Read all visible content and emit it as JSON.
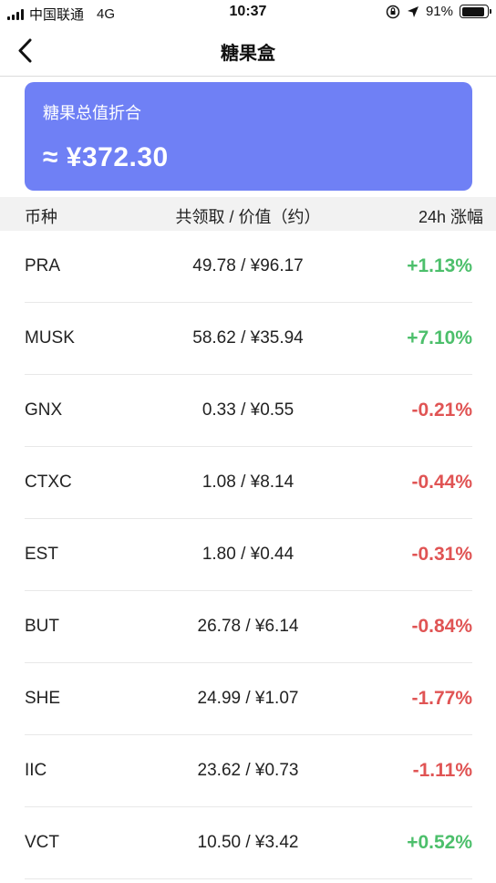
{
  "status_bar": {
    "carrier": "中国联通",
    "network": "4G",
    "time": "10:37",
    "battery": "91%",
    "battery_level": 0.91
  },
  "nav": {
    "title": "糖果盒",
    "back_icon": "chevron-left-icon"
  },
  "summary": {
    "label": "糖果总值折合",
    "value": "≈ ¥372.30",
    "card_color": "#6f80f5"
  },
  "table": {
    "headers": {
      "coin": "币种",
      "amount": "共领取 / 价值（约）",
      "change": "24h 涨幅"
    },
    "colors": {
      "positive": "#4cbf6b",
      "negative": "#e05454"
    },
    "rows": [
      {
        "coin": "PRA",
        "amount": "49.78 / ¥96.17",
        "change": "+1.13%",
        "direction": "pos"
      },
      {
        "coin": "MUSK",
        "amount": "58.62 / ¥35.94",
        "change": "+7.10%",
        "direction": "pos"
      },
      {
        "coin": "GNX",
        "amount": "0.33 / ¥0.55",
        "change": "-0.21%",
        "direction": "neg"
      },
      {
        "coin": "CTXC",
        "amount": "1.08 / ¥8.14",
        "change": "-0.44%",
        "direction": "neg"
      },
      {
        "coin": "EST",
        "amount": "1.80 / ¥0.44",
        "change": "-0.31%",
        "direction": "neg"
      },
      {
        "coin": "BUT",
        "amount": "26.78 / ¥6.14",
        "change": "-0.84%",
        "direction": "neg"
      },
      {
        "coin": "SHE",
        "amount": "24.99 / ¥1.07",
        "change": "-1.77%",
        "direction": "neg"
      },
      {
        "coin": "IIC",
        "amount": "23.62 / ¥0.73",
        "change": "-1.11%",
        "direction": "neg"
      },
      {
        "coin": "VCT",
        "amount": "10.50 / ¥3.42",
        "change": "+0.52%",
        "direction": "pos"
      }
    ]
  }
}
